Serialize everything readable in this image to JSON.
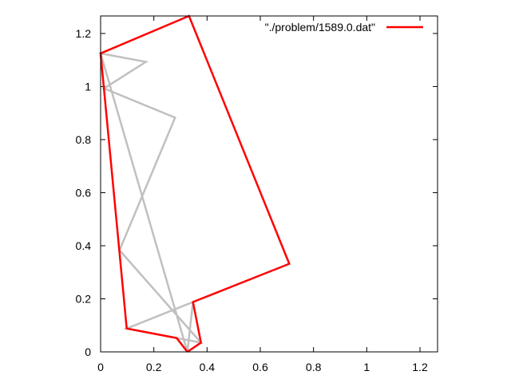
{
  "chart_data": {
    "type": "line",
    "title": "",
    "xlabel": "",
    "ylabel": "",
    "xlim": [
      0,
      1.266
    ],
    "ylim": [
      0,
      1.266
    ],
    "x_ticks": [
      {
        "value": 0,
        "label": "0"
      },
      {
        "value": 0.2,
        "label": "0.2"
      },
      {
        "value": 0.4,
        "label": "0.4"
      },
      {
        "value": 0.6,
        "label": "0.6"
      },
      {
        "value": 0.8,
        "label": "0.8"
      },
      {
        "value": 1,
        "label": "1"
      },
      {
        "value": 1.2,
        "label": "1.2"
      }
    ],
    "y_ticks": [
      {
        "value": 0,
        "label": "0"
      },
      {
        "value": 0.2,
        "label": "0.2"
      },
      {
        "value": 0.4,
        "label": "0.4"
      },
      {
        "value": 0.6,
        "label": "0.6"
      },
      {
        "value": 0.8,
        "label": "0.8"
      },
      {
        "value": 1,
        "label": "1"
      },
      {
        "value": 1.2,
        "label": "1.2"
      }
    ],
    "grid": false,
    "legend_position": "top-right",
    "background_path": {
      "color": "#c0c0c0",
      "points": [
        [
          0.326,
          0.0
        ],
        [
          0.0,
          1.125
        ],
        [
          0.17,
          1.093
        ],
        [
          0.013,
          0.993
        ],
        [
          0.28,
          0.883
        ],
        [
          0.071,
          0.383
        ],
        [
          0.377,
          0.035
        ],
        [
          0.286,
          0.052
        ],
        [
          0.098,
          0.088
        ],
        [
          0.347,
          0.188
        ],
        [
          0.326,
          0.0
        ]
      ]
    },
    "series": [
      {
        "name": "\"./problem/1589.0.dat\"",
        "color": "#ff0000",
        "points": [
          [
            0.326,
            0.0
          ],
          [
            0.377,
            0.035
          ],
          [
            0.347,
            0.188
          ],
          [
            0.709,
            0.332
          ],
          [
            0.332,
            1.266
          ],
          [
            0.0,
            1.125
          ],
          [
            0.098,
            0.088
          ],
          [
            0.286,
            0.052
          ],
          [
            0.326,
            0.0
          ]
        ]
      }
    ]
  }
}
